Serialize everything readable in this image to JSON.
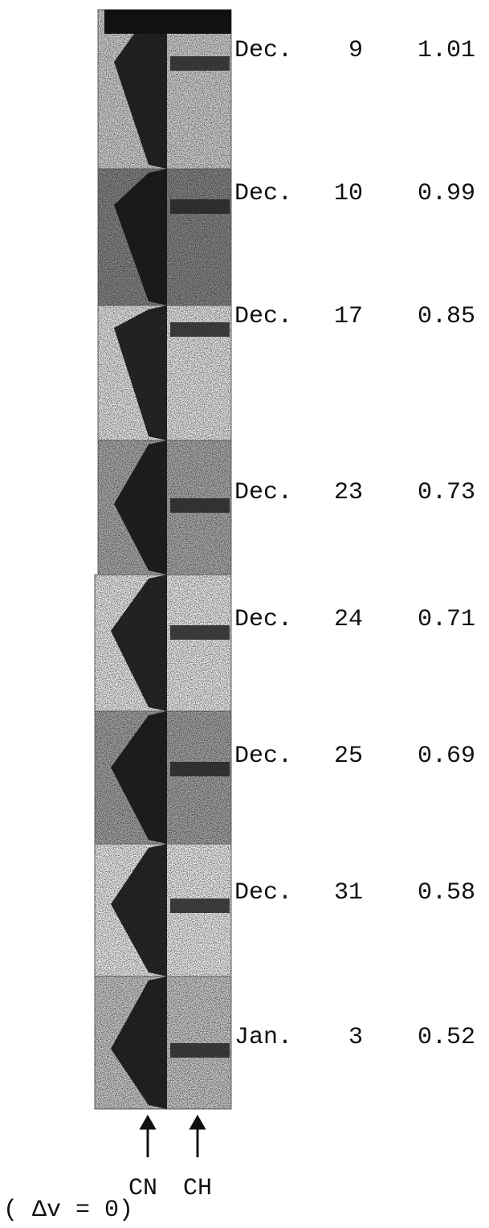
{
  "rows": [
    {
      "month": "Dec.",
      "day": "9",
      "value": "1.01"
    },
    {
      "month": "Dec.",
      "day": "10",
      "value": "0.99"
    },
    {
      "month": "Dec.",
      "day": "17",
      "value": "0.85"
    },
    {
      "month": "Dec.",
      "day": "23",
      "value": "0.73"
    },
    {
      "month": "Dec.",
      "day": "24",
      "value": "0.71"
    },
    {
      "month": "Dec.",
      "day": "25",
      "value": "0.69"
    },
    {
      "month": "Dec.",
      "day": "31",
      "value": "0.58"
    },
    {
      "month": "Jan.",
      "day": "3",
      "value": "0.52"
    }
  ],
  "labels": {
    "cn": "CN",
    "ch": "CH",
    "note": "( Δv = 0)"
  }
}
